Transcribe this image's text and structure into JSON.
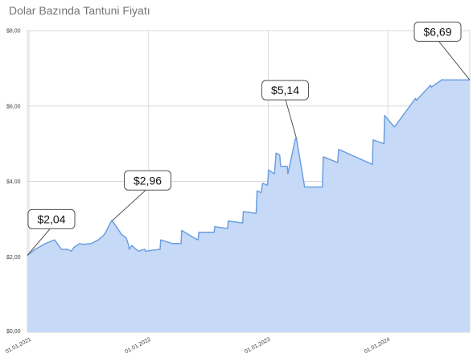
{
  "chart_data": {
    "type": "area",
    "title": "Dolar Bazında Tantuni Fiyatı",
    "xlabel": "",
    "ylabel": "",
    "ylim": [
      0,
      8
    ],
    "y_ticks": [
      "$0,00",
      "$2,00",
      "$4,00",
      "$6,00",
      "$8,00"
    ],
    "y_tick_values": [
      0,
      2,
      4,
      6,
      8
    ],
    "x_ticks": [
      "01.01.2021",
      "01.01.2022",
      "01.01.2023",
      "01.01.2024"
    ],
    "x_tick_values": [
      "2021-01-01",
      "2022-01-01",
      "2023-01-01",
      "2024-01-01"
    ],
    "xlim": [
      "2020-12-27",
      "2024-09-07"
    ],
    "grid": true,
    "colors": {
      "fill": "#c6daf8",
      "line": "#6c9fe0",
      "grid": "#d9d9d9"
    },
    "series": [
      {
        "x": [
          "2020-12-27",
          "2021-01-20",
          "2021-02-20",
          "2021-03-20",
          "2021-04-10",
          "2021-04-28",
          "2021-05-10",
          "2021-05-18",
          "2021-06-05",
          "2021-06-15",
          "2021-07-10",
          "2021-08-01",
          "2021-08-20",
          "2021-09-10",
          "2021-09-12",
          "2021-10-10",
          "2021-10-25",
          "2021-11-01",
          "2021-11-03",
          "2021-11-10",
          "2021-12-01",
          "2021-12-20",
          "2021-12-22",
          "2022-02-05",
          "2022-02-07",
          "2022-03-15",
          "2022-04-10",
          "2022-04-12",
          "2022-05-20",
          "2022-06-01",
          "2022-06-03",
          "2022-07-20",
          "2022-07-22",
          "2022-08-30",
          "2022-09-01",
          "2022-10-15",
          "2022-10-17",
          "2022-11-25",
          "2022-11-28",
          "2022-12-10",
          "2022-12-15",
          "2022-12-30",
          "2023-01-02",
          "2023-01-20",
          "2023-01-25",
          "2023-02-05",
          "2023-02-08",
          "2023-02-28",
          "2023-03-02",
          "2023-03-25",
          "2023-03-28",
          "2023-04-22",
          "2023-06-15",
          "2023-06-18",
          "2023-08-01",
          "2023-08-04",
          "2023-11-15",
          "2023-11-17",
          "2023-12-20",
          "2023-12-22",
          "2024-01-20",
          "2024-01-22",
          "2024-03-25",
          "2024-03-28",
          "2024-05-10",
          "2024-05-13",
          "2024-06-15",
          "2024-06-18",
          "2024-08-10",
          "2024-08-13",
          "2024-09-07"
        ],
        "y": [
          2.04,
          2.2,
          2.35,
          2.45,
          2.2,
          2.2,
          2.15,
          2.25,
          2.35,
          2.33,
          2.35,
          2.45,
          2.6,
          2.96,
          2.96,
          2.6,
          2.5,
          2.3,
          2.2,
          2.3,
          2.15,
          2.2,
          2.15,
          2.2,
          2.45,
          2.35,
          2.35,
          2.7,
          2.5,
          2.45,
          2.65,
          2.65,
          2.8,
          2.75,
          2.95,
          2.9,
          3.2,
          3.15,
          3.75,
          3.7,
          3.95,
          3.9,
          4.3,
          4.2,
          4.75,
          4.7,
          4.4,
          4.4,
          4.2,
          5.14,
          5.14,
          3.85,
          3.85,
          4.65,
          4.5,
          4.85,
          4.45,
          5.1,
          5.0,
          5.75,
          5.45,
          5.45,
          6.2,
          6.15,
          6.55,
          6.5,
          6.7,
          6.69,
          6.69,
          6.69,
          6.69
        ]
      }
    ],
    "annotations": [
      {
        "label": "$2,04",
        "x": "2020-12-27",
        "y": 2.04
      },
      {
        "label": "$2,96",
        "x": "2021-09-12",
        "y": 2.96
      },
      {
        "label": "$5,14",
        "x": "2023-03-28",
        "y": 5.14
      },
      {
        "label": "$6,69",
        "x": "2024-09-07",
        "y": 6.69
      }
    ]
  }
}
